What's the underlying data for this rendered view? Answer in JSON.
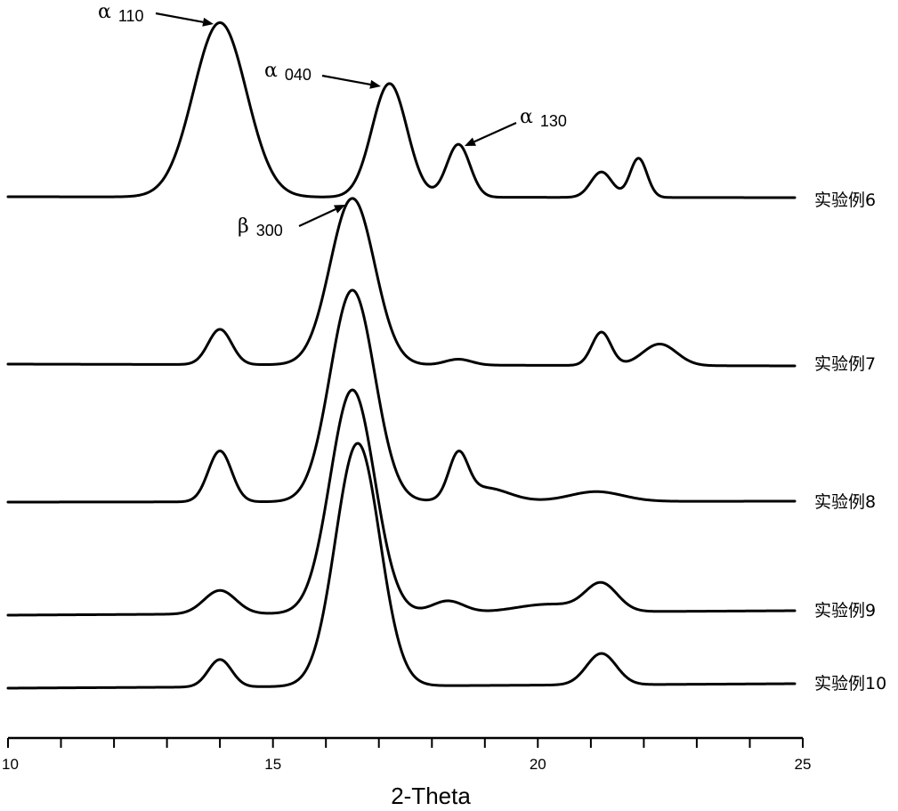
{
  "chart_data": {
    "type": "line",
    "xlabel": "2-Theta",
    "ylabel": "",
    "xlim": [
      10,
      25
    ],
    "x_ticks": [
      10,
      15,
      20,
      25
    ],
    "grid": false,
    "legend": "none",
    "series": [
      {
        "name": "实验例6",
        "baseline": 0.0,
        "peaks": [
          {
            "x": 14.0,
            "h": 0.89,
            "w": 0.5
          },
          {
            "x": 17.2,
            "h": 0.58,
            "w": 0.33
          },
          {
            "x": 18.5,
            "h": 0.27,
            "w": 0.22
          },
          {
            "x": 21.2,
            "h": 0.13,
            "w": 0.2
          },
          {
            "x": 21.9,
            "h": 0.2,
            "w": 0.16
          }
        ],
        "stroke_width": 3
      },
      {
        "name": "实验例7",
        "baseline": 0.0,
        "peaks": [
          {
            "x": 14.0,
            "h": 0.18,
            "w": 0.22
          },
          {
            "x": 16.5,
            "h": 0.85,
            "w": 0.42
          },
          {
            "x": 18.5,
            "h": 0.03,
            "w": 0.25
          },
          {
            "x": 21.2,
            "h": 0.17,
            "w": 0.18
          },
          {
            "x": 22.3,
            "h": 0.11,
            "w": 0.32
          }
        ],
        "stroke_width": 3
      },
      {
        "name": "实验例8",
        "baseline": 0.0,
        "peaks": [
          {
            "x": 14.0,
            "h": 0.26,
            "w": 0.22
          },
          {
            "x": 16.5,
            "h": 1.08,
            "w": 0.42
          },
          {
            "x": 18.5,
            "h": 0.22,
            "w": 0.18
          },
          {
            "x": 19.0,
            "h": 0.07,
            "w": 0.45
          },
          {
            "x": 21.1,
            "h": 0.05,
            "w": 0.5
          }
        ],
        "stroke_width": 3
      },
      {
        "name": "实验例9",
        "baseline": 0.0,
        "peaks": [
          {
            "x": 14.0,
            "h": 0.12,
            "w": 0.3
          },
          {
            "x": 16.5,
            "h": 1.14,
            "w": 0.42
          },
          {
            "x": 18.3,
            "h": 0.06,
            "w": 0.3
          },
          {
            "x": 20.2,
            "h": 0.04,
            "w": 0.6
          },
          {
            "x": 21.2,
            "h": 0.14,
            "w": 0.3
          }
        ],
        "stroke_width": 3
      },
      {
        "name": "实验例10",
        "baseline": 0.0,
        "peaks": [
          {
            "x": 14.0,
            "h": 0.14,
            "w": 0.22
          },
          {
            "x": 16.6,
            "h": 1.24,
            "w": 0.42
          },
          {
            "x": 21.2,
            "h": 0.16,
            "w": 0.28
          }
        ],
        "stroke_width": 3
      }
    ],
    "annotations": [
      {
        "greek": "α",
        "sub": "110",
        "series": "实验例6",
        "x": 14.0
      },
      {
        "greek": "α",
        "sub": "040",
        "series": "实验例6",
        "x": 17.2
      },
      {
        "greek": "α",
        "sub": "130",
        "series": "实验例6",
        "x": 18.5
      },
      {
        "greek": "β",
        "sub": "300",
        "series": "实验例7",
        "x": 16.5
      }
    ]
  }
}
